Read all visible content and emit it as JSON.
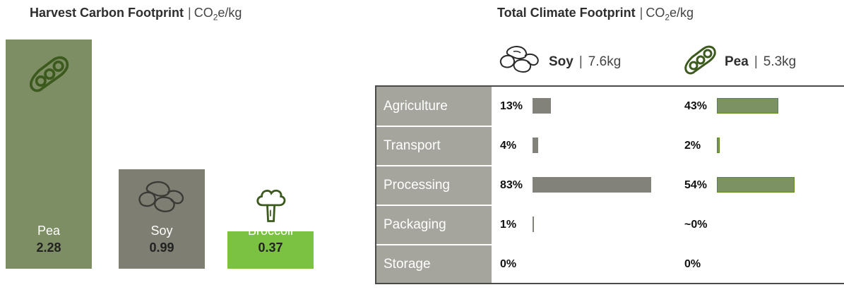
{
  "left_title": {
    "bold": "Harvest Carbon Footprint",
    "sep": "|",
    "unit_prefix": "CO",
    "unit_sub": "2",
    "unit_suffix": "e/kg"
  },
  "right_title": {
    "bold": "Total Climate Footprint",
    "sep": "|",
    "unit_prefix": "CO",
    "unit_sub": "2",
    "unit_suffix": "e/kg"
  },
  "colors": {
    "pea": "#7e8e64",
    "soy": "#7e7e72",
    "broccoli": "#7cc242",
    "pea_bar_border": "#5a8a1a",
    "category_bg": "#a5a59d",
    "icon_dark": "#3d5a1e"
  },
  "chart_data": [
    {
      "type": "bar",
      "title": "Harvest Carbon Footprint | CO2e/kg",
      "categories": [
        "Pea",
        "Soy",
        "Broccoli"
      ],
      "values": [
        2.28,
        0.99,
        0.37
      ],
      "value_labels": [
        "2.28",
        "0.99",
        "0.37"
      ],
      "icons": [
        "pea-pod-icon",
        "soybean-icon",
        "broccoli-icon"
      ],
      "colors": [
        "#7e8e64",
        "#7e7e72",
        "#7cc242"
      ]
    },
    {
      "type": "table",
      "title": "Total Climate Footprint | CO2e/kg",
      "crops": [
        {
          "name": "Soy",
          "sep": "|",
          "total": "7.6kg",
          "icon": "soybean-icon"
        },
        {
          "name": "Pea",
          "sep": "|",
          "total": "5.3kg",
          "icon": "pea-pod-icon"
        }
      ],
      "categories": [
        "Agriculture",
        "Transport",
        "Processing",
        "Packaging",
        "Storage"
      ],
      "series": [
        {
          "name": "Soy",
          "labels": [
            "13%",
            "4%",
            "83%",
            "1%",
            "0%"
          ],
          "values": [
            13,
            4,
            83,
            1,
            0
          ]
        },
        {
          "name": "Pea",
          "labels": [
            "43%",
            "2%",
            "54%",
            "~0%",
            "0%"
          ],
          "values": [
            43,
            2,
            54,
            0,
            0
          ]
        }
      ]
    }
  ]
}
